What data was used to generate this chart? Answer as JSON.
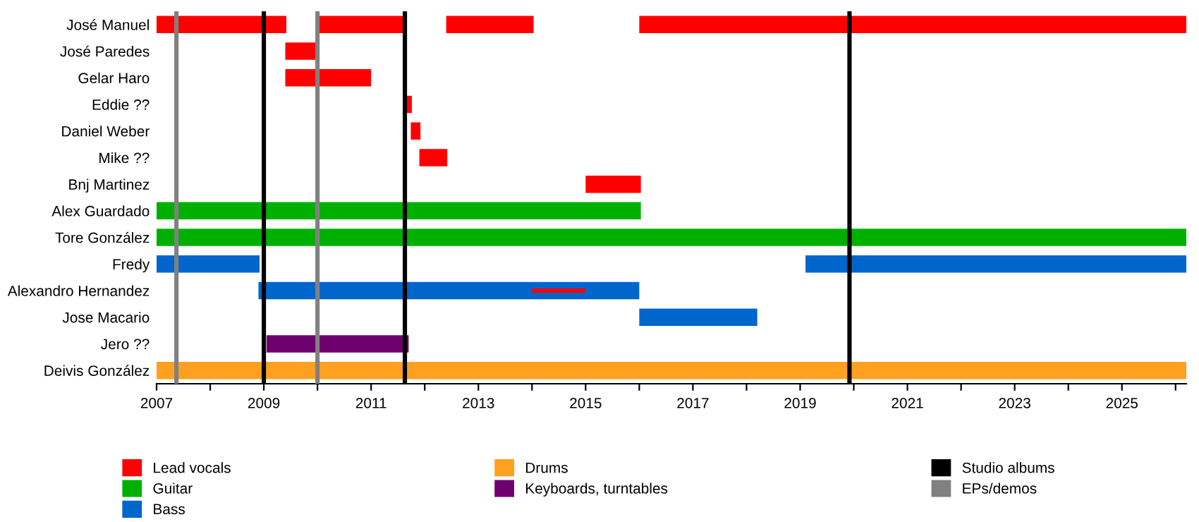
{
  "chart_data": {
    "type": "bar",
    "orientation": "horizontal",
    "categories": [
      "José Manuel",
      "José Paredes",
      "Gelar Haro",
      "Eddie ??",
      "Daniel Weber",
      "Mike ??",
      "Bnj Martinez",
      "Alex Guardado",
      "Tore González",
      "Fredy",
      "Alexandro Hernandez",
      "Jose Macario",
      "Jero ??",
      "Deivis González"
    ],
    "series": [
      {
        "name": "Lead vocals",
        "color": "#ff0000",
        "base": [
          2007,
          2009.4,
          2009.4,
          2011.63,
          2011.74,
          2011.9,
          2015.0,
          null,
          null,
          null,
          null,
          null,
          null,
          null
        ],
        "values": [
          2.42,
          0.63,
          1.6,
          0.13,
          0.18,
          0.52,
          1.03,
          null,
          null,
          null,
          null,
          null,
          null,
          null
        ]
      },
      {
        "color": "#ff0000",
        "base": [
          2010.0,
          null,
          null,
          null,
          null,
          null,
          null,
          null,
          null,
          null,
          null,
          null,
          null,
          null
        ],
        "values": [
          1.66,
          null,
          null,
          null,
          null,
          null,
          null,
          null,
          null,
          null,
          null,
          null,
          null,
          null
        ]
      },
      {
        "color": "#ff0000",
        "base": [
          2012.4,
          null,
          null,
          null,
          null,
          null,
          null,
          null,
          null,
          null,
          null,
          null,
          null,
          null
        ],
        "values": [
          1.63,
          null,
          null,
          null,
          null,
          null,
          null,
          null,
          null,
          null,
          null,
          null,
          null,
          null
        ]
      },
      {
        "color": "#ff0000",
        "base": [
          2016.0,
          null,
          null,
          null,
          null,
          null,
          null,
          null,
          null,
          null,
          null,
          null,
          null,
          null
        ],
        "values": [
          10.2,
          null,
          null,
          null,
          null,
          null,
          null,
          null,
          null,
          null,
          null,
          null,
          null,
          null
        ]
      },
      {
        "name": "Guitar",
        "color": "#00b000",
        "base": [
          null,
          null,
          null,
          null,
          null,
          null,
          null,
          2007,
          2007,
          null,
          null,
          null,
          null,
          null
        ],
        "values": [
          null,
          null,
          null,
          null,
          null,
          null,
          null,
          9.03,
          19.2,
          null,
          null,
          null,
          null,
          null
        ]
      },
      {
        "name": "Bass",
        "color": "#0066cc",
        "base": [
          null,
          null,
          null,
          null,
          null,
          null,
          null,
          null,
          null,
          2007,
          2008.9,
          2016.0,
          null,
          null
        ],
        "values": [
          null,
          null,
          null,
          null,
          null,
          null,
          null,
          null,
          null,
          1.92,
          7.1,
          2.2,
          null,
          null
        ]
      },
      {
        "color": "#0066cc",
        "base": [
          null,
          null,
          null,
          null,
          null,
          null,
          null,
          null,
          null,
          2019.1,
          null,
          null,
          null,
          null
        ],
        "values": [
          null,
          null,
          null,
          null,
          null,
          null,
          null,
          null,
          null,
          7.1,
          null,
          null,
          null,
          null
        ]
      },
      {
        "name": "Drums",
        "color": "#ffa020",
        "base": [
          null,
          null,
          null,
          null,
          null,
          null,
          null,
          null,
          null,
          null,
          null,
          null,
          null,
          2007
        ],
        "values": [
          null,
          null,
          null,
          null,
          null,
          null,
          null,
          null,
          null,
          null,
          null,
          null,
          null,
          19.2
        ]
      },
      {
        "name": "Keyboards, turntables",
        "color": "#6e006e",
        "base": [
          null,
          null,
          null,
          null,
          null,
          null,
          null,
          null,
          null,
          null,
          null,
          null,
          2009.05,
          null
        ],
        "values": [
          null,
          null,
          null,
          null,
          null,
          null,
          null,
          null,
          null,
          null,
          null,
          null,
          2.65,
          null
        ]
      },
      {
        "color": "#ff0000",
        "base": [
          null,
          null,
          null,
          null,
          null,
          null,
          null,
          null,
          null,
          null,
          2014.0,
          null,
          null,
          null
        ],
        "values": [
          null,
          null,
          null,
          null,
          null,
          null,
          null,
          null,
          null,
          null,
          1.0,
          null,
          null,
          null
        ]
      }
    ],
    "ref_lines": [
      {
        "axis": "x",
        "value": 2009.0,
        "label": "Studio albums",
        "color": "#000000"
      },
      {
        "axis": "x",
        "value": 2011.63,
        "color": "#000000"
      },
      {
        "axis": "x",
        "value": 2019.92,
        "color": "#000000"
      },
      {
        "axis": "x",
        "value": 2007.37,
        "label": "EPs/demos",
        "color": "#808080"
      },
      {
        "axis": "x",
        "value": 2010.0,
        "color": "#808080"
      }
    ],
    "xlim": [
      2007,
      2026.2
    ],
    "xticks": [
      2007,
      {
        "value": 2008,
        "label": null
      },
      2009,
      {
        "value": 2010,
        "label": null
      },
      2011,
      {
        "value": 2012,
        "label": null
      },
      2013,
      {
        "value": 2014,
        "label": null
      },
      2015,
      {
        "value": 2016,
        "label": null
      },
      2017,
      {
        "value": 2018,
        "label": null
      },
      2019,
      {
        "value": 2020,
        "label": null
      },
      2021,
      {
        "value": 2022,
        "label": null
      },
      2023,
      {
        "value": 2024,
        "label": null
      },
      2025,
      {
        "value": 2026,
        "label": null
      }
    ],
    "grid": false,
    "legend": "bottom"
  }
}
